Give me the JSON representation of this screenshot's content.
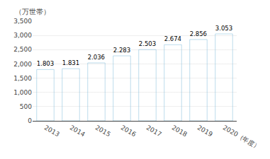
{
  "chart_data": {
    "type": "bar",
    "ylabel": "（万世帯）",
    "categories": [
      "2013",
      "2014",
      "2015",
      "2016",
      "2017",
      "2018",
      "2019",
      "2020（年度）"
    ],
    "values": [
      1803,
      1831,
      2036,
      2283,
      2503,
      2674,
      2856,
      3053
    ],
    "value_labels": [
      "1.803",
      "1.831",
      "2.036",
      "2.283",
      "2.503",
      "2.674",
      "2.856",
      "3.053"
    ],
    "data_labels": true,
    "color": "#7ab8d9",
    "ylim": [
      0,
      3500
    ],
    "yticks": [
      0,
      500,
      {
        "value": 1000,
        "label": "1,000"
      },
      {
        "value": 1500,
        "label": "1,500"
      },
      {
        "value": 2000,
        "label": "2,000"
      },
      {
        "value": 2500,
        "label": "2,500"
      },
      {
        "value": 3000,
        "label": "3,000"
      },
      {
        "value": 3500,
        "label": "3,500"
      }
    ],
    "grid": true
  }
}
